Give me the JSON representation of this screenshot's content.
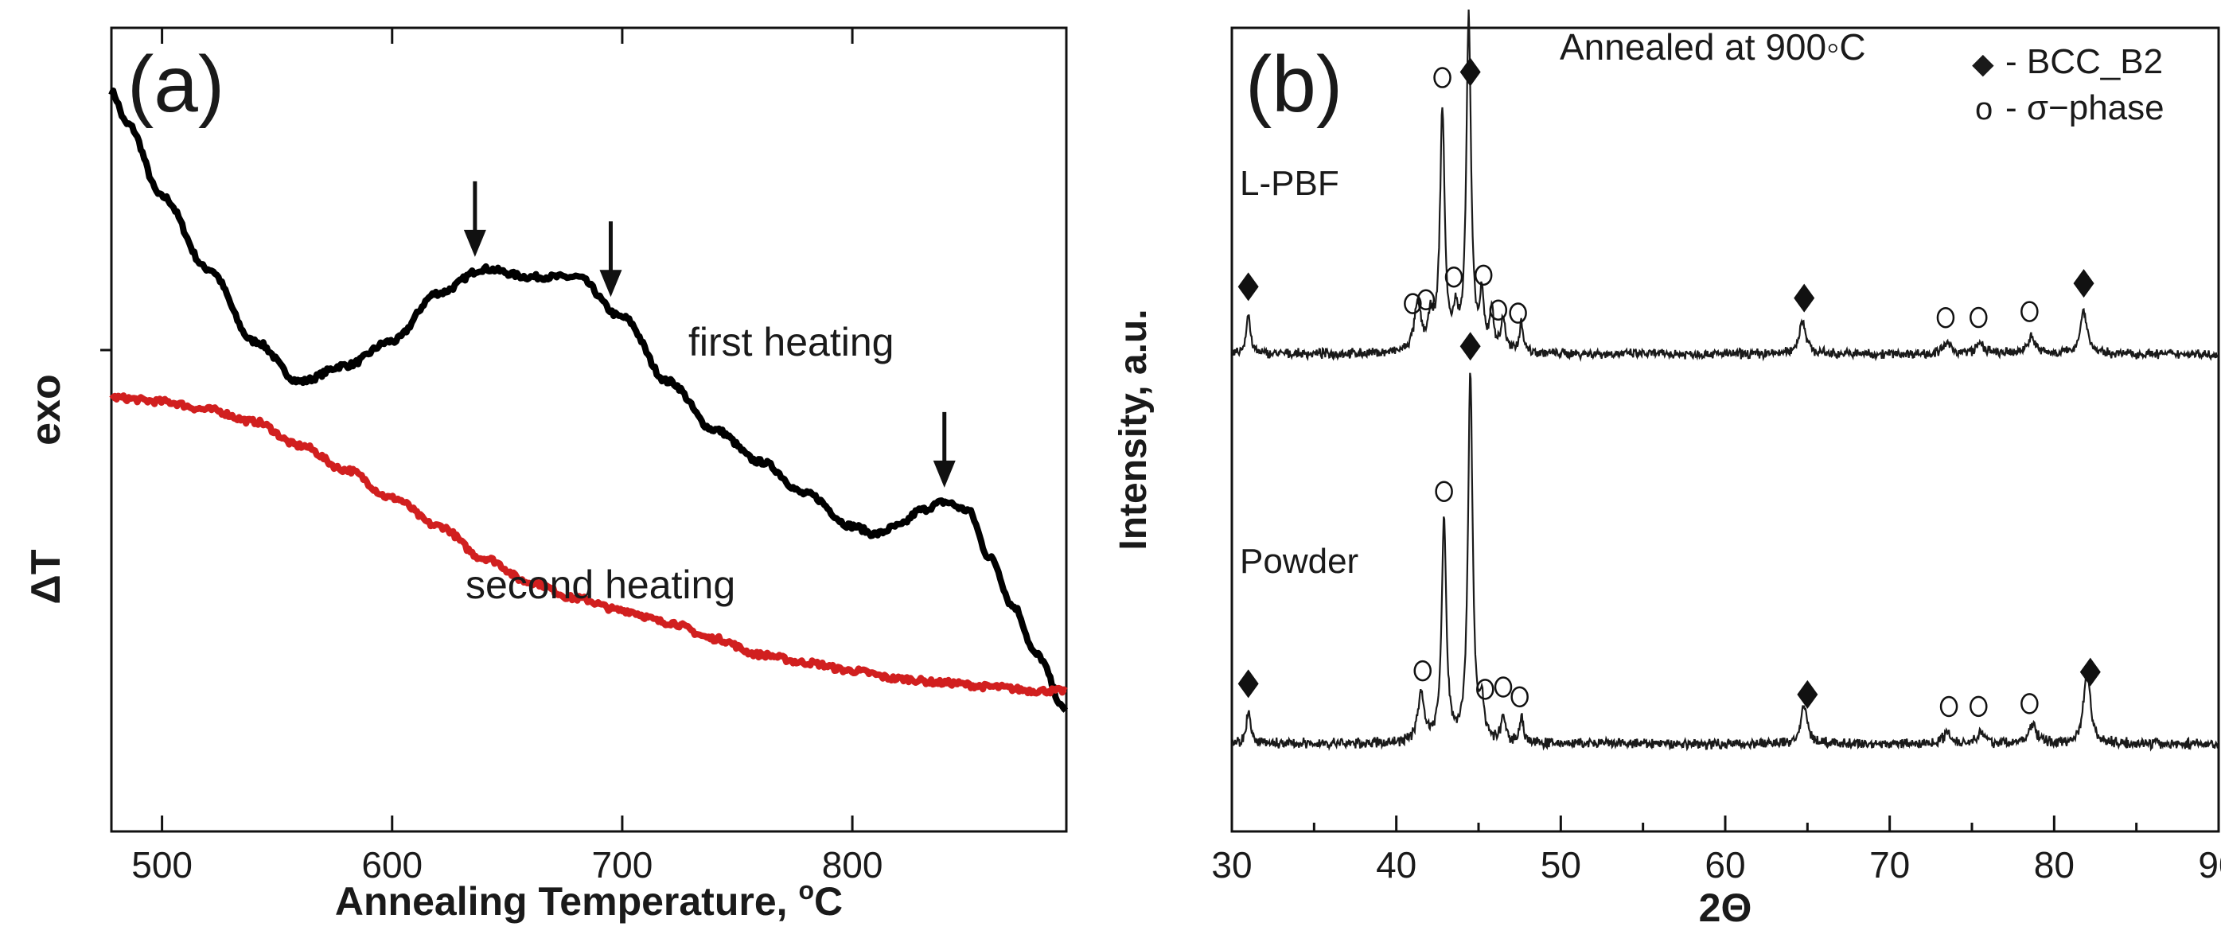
{
  "chart_data": [
    {
      "type": "line",
      "panel_label": "(a)",
      "xlabel": "Annealing Temperature, ",
      "xlabel_sup": "o",
      "xlabel_end": "C",
      "ylabel": "ΔT",
      "ylabel2": "exo",
      "xlim": [
        478,
        893
      ],
      "xticks": [
        "500",
        "600",
        "700",
        "800"
      ],
      "xtick_values": [
        500,
        600,
        700,
        800
      ],
      "ylim": [
        0,
        100
      ],
      "grid": false,
      "series": [
        {
          "name": "first heating",
          "color": "#000000",
          "x": [
            478,
            485,
            500,
            520,
            540,
            560,
            580,
            600,
            620,
            640,
            660,
            680,
            700,
            720,
            740,
            760,
            780,
            800,
            810,
            820,
            830,
            840,
            850,
            860,
            870,
            880,
            893
          ],
          "y": [
            92,
            88,
            79,
            70,
            61,
            56,
            58,
            61,
            67,
            70,
            69,
            69,
            64,
            56,
            50,
            46,
            42,
            38,
            37,
            38,
            40,
            41,
            40,
            34,
            28,
            22,
            15
          ]
        },
        {
          "name": "second heating",
          "color": "#d11f1f",
          "x": [
            478,
            500,
            520,
            540,
            560,
            580,
            600,
            620,
            640,
            660,
            680,
            700,
            720,
            740,
            760,
            780,
            800,
            820,
            840,
            860,
            880,
            893
          ],
          "y": [
            54,
            53.5,
            52.5,
            51,
            48,
            45,
            41.5,
            38,
            34,
            31,
            29,
            27.5,
            26,
            24,
            22,
            21,
            20,
            19,
            18.5,
            18,
            17.5,
            17.5
          ]
        }
      ],
      "arrows_at_x": [
        636,
        695,
        840
      ],
      "annotations": [
        "first heating",
        "second heating"
      ]
    },
    {
      "type": "line",
      "panel_label": "(b)",
      "xlabel": "2Θ",
      "ylabel": "Intensity, a.u.",
      "xlim": [
        30,
        90
      ],
      "xticks": [
        "30",
        "40",
        "50",
        "60",
        "70",
        "80",
        "90"
      ],
      "xtick_values": [
        30,
        40,
        50,
        60,
        70,
        80,
        90
      ],
      "grid": false,
      "title": "Annealed at 900◦C",
      "legend": [
        {
          "symbol": "◆",
          "label": "- BCC_B2"
        },
        {
          "symbol": "o",
          "label": "- σ−phase"
        }
      ],
      "legend_position": "top-right",
      "series": [
        {
          "name": "L-PBF",
          "peaks": [
            {
              "x": 31.0,
              "h": 0.12,
              "w": 0.15
            },
            {
              "x": 41.3,
              "h": 0.14,
              "w": 0.25
            },
            {
              "x": 42.1,
              "h": 0.09,
              "w": 0.2
            },
            {
              "x": 42.8,
              "h": 0.72,
              "w": 0.17
            },
            {
              "x": 43.6,
              "h": 0.1,
              "w": 0.15
            },
            {
              "x": 44.4,
              "h": 1.0,
              "w": 0.17
            },
            {
              "x": 45.2,
              "h": 0.15,
              "w": 0.15
            },
            {
              "x": 45.8,
              "h": 0.12,
              "w": 0.15
            },
            {
              "x": 46.5,
              "h": 0.1,
              "w": 0.15
            },
            {
              "x": 47.6,
              "h": 0.09,
              "w": 0.15
            },
            {
              "x": 64.7,
              "h": 0.1,
              "w": 0.25
            },
            {
              "x": 73.5,
              "h": 0.03,
              "w": 0.3
            },
            {
              "x": 75.5,
              "h": 0.03,
              "w": 0.3
            },
            {
              "x": 78.6,
              "h": 0.05,
              "w": 0.3
            },
            {
              "x": 81.8,
              "h": 0.13,
              "w": 0.25
            }
          ],
          "phase_markers": [
            {
              "x": 31.0,
              "phase": "BCC_B2"
            },
            {
              "x": 41.0,
              "phase": "sigma"
            },
            {
              "x": 41.8,
              "phase": "sigma"
            },
            {
              "x": 42.8,
              "phase": "sigma"
            },
            {
              "x": 43.5,
              "phase": "sigma"
            },
            {
              "x": 44.5,
              "phase": "BCC_B2"
            },
            {
              "x": 45.3,
              "phase": "sigma"
            },
            {
              "x": 46.2,
              "phase": "sigma"
            },
            {
              "x": 47.4,
              "phase": "sigma"
            },
            {
              "x": 64.8,
              "phase": "BCC_B2"
            },
            {
              "x": 73.4,
              "phase": "sigma"
            },
            {
              "x": 75.4,
              "phase": "sigma"
            },
            {
              "x": 78.5,
              "phase": "sigma"
            },
            {
              "x": 81.8,
              "phase": "BCC_B2"
            }
          ]
        },
        {
          "name": "Powder",
          "peaks": [
            {
              "x": 31.0,
              "h": 0.09,
              "w": 0.15
            },
            {
              "x": 41.5,
              "h": 0.13,
              "w": 0.25
            },
            {
              "x": 42.9,
              "h": 0.6,
              "w": 0.17
            },
            {
              "x": 44.5,
              "h": 1.0,
              "w": 0.17
            },
            {
              "x": 45.2,
              "h": 0.1,
              "w": 0.15
            },
            {
              "x": 46.5,
              "h": 0.07,
              "w": 0.15
            },
            {
              "x": 47.6,
              "h": 0.07,
              "w": 0.15
            },
            {
              "x": 64.8,
              "h": 0.1,
              "w": 0.25
            },
            {
              "x": 73.5,
              "h": 0.03,
              "w": 0.3
            },
            {
              "x": 75.5,
              "h": 0.03,
              "w": 0.3
            },
            {
              "x": 78.7,
              "h": 0.05,
              "w": 0.3
            },
            {
              "x": 82.0,
              "h": 0.2,
              "w": 0.25
            }
          ],
          "phase_markers": [
            {
              "x": 31.0,
              "phase": "BCC_B2"
            },
            {
              "x": 41.6,
              "phase": "sigma"
            },
            {
              "x": 42.9,
              "phase": "sigma"
            },
            {
              "x": 44.5,
              "phase": "BCC_B2"
            },
            {
              "x": 45.4,
              "phase": "sigma"
            },
            {
              "x": 46.5,
              "phase": "sigma"
            },
            {
              "x": 47.5,
              "phase": "sigma"
            },
            {
              "x": 65.0,
              "phase": "BCC_B2"
            },
            {
              "x": 73.6,
              "phase": "sigma"
            },
            {
              "x": 75.4,
              "phase": "sigma"
            },
            {
              "x": 78.5,
              "phase": "sigma"
            },
            {
              "x": 82.2,
              "phase": "BCC_B2"
            }
          ]
        }
      ]
    }
  ]
}
